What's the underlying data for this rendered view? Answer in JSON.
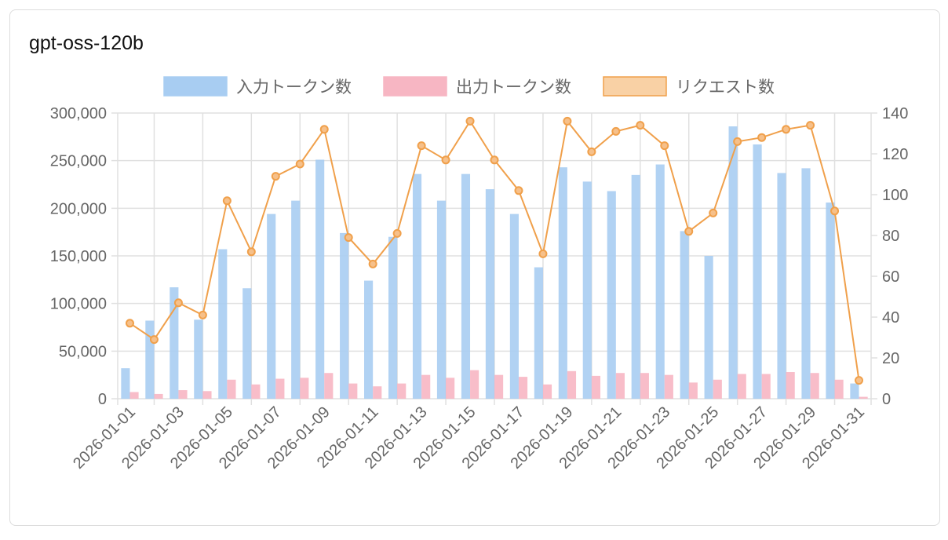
{
  "title": "gpt-oss-120b",
  "chart_data": {
    "type": "bar",
    "title": "gpt-oss-120b",
    "categories": [
      "2026-01-01",
      "2026-01-02",
      "2026-01-03",
      "2026-01-04",
      "2026-01-05",
      "2026-01-06",
      "2026-01-07",
      "2026-01-08",
      "2026-01-09",
      "2026-01-10",
      "2026-01-11",
      "2026-01-12",
      "2026-01-13",
      "2026-01-14",
      "2026-01-15",
      "2026-01-16",
      "2026-01-17",
      "2026-01-18",
      "2026-01-19",
      "2026-01-20",
      "2026-01-21",
      "2026-01-22",
      "2026-01-23",
      "2026-01-24",
      "2026-01-25",
      "2026-01-26",
      "2026-01-27",
      "2026-01-28",
      "2026-01-29",
      "2026-01-30",
      "2026-01-31"
    ],
    "x_tick_labels": [
      "2026-01-01",
      "2026-01-03",
      "2026-01-05",
      "2026-01-07",
      "2026-01-09",
      "2026-01-11",
      "2026-01-13",
      "2026-01-15",
      "2026-01-17",
      "2026-01-19",
      "2026-01-21",
      "2026-01-23",
      "2026-01-25",
      "2026-01-27",
      "2026-01-29",
      "2026-01-31"
    ],
    "series": [
      {
        "name": "入力トークン数",
        "type": "bar",
        "axis": "left",
        "color": "#a8cdf2",
        "values": [
          32000,
          82000,
          117000,
          83000,
          157000,
          116000,
          194000,
          208000,
          251000,
          174000,
          124000,
          170000,
          236000,
          208000,
          236000,
          220000,
          194000,
          138000,
          243000,
          228000,
          218000,
          235000,
          246000,
          176000,
          150000,
          286000,
          267000,
          237000,
          242000,
          206000,
          16000
        ]
      },
      {
        "name": "出力トークン数",
        "type": "bar",
        "axis": "left",
        "color": "#f7b6c3",
        "values": [
          7000,
          5000,
          9000,
          8000,
          20000,
          15000,
          21000,
          22000,
          27000,
          16000,
          13000,
          16000,
          25000,
          22000,
          30000,
          25000,
          23000,
          15000,
          29000,
          24000,
          27000,
          27000,
          25000,
          17000,
          20000,
          26000,
          26000,
          28000,
          27000,
          20000,
          2000
        ]
      },
      {
        "name": "リクエスト数",
        "type": "line",
        "axis": "right",
        "color": "#f0a04b",
        "values": [
          37,
          29,
          47,
          41,
          97,
          72,
          109,
          115,
          132,
          79,
          66,
          81,
          124,
          117,
          136,
          117,
          102,
          71,
          136,
          121,
          131,
          134,
          124,
          82,
          91,
          126,
          128,
          132,
          134,
          92,
          9
        ]
      }
    ],
    "y_left": {
      "range": [
        0,
        300000
      ],
      "ticks": [
        "0",
        "50,000",
        "100,000",
        "150,000",
        "200,000",
        "250,000",
        "300,000"
      ]
    },
    "y_right": {
      "range": [
        0,
        140
      ],
      "ticks": [
        "0",
        "20",
        "40",
        "60",
        "80",
        "100",
        "120",
        "140"
      ]
    },
    "grid": true,
    "legend": "top"
  }
}
